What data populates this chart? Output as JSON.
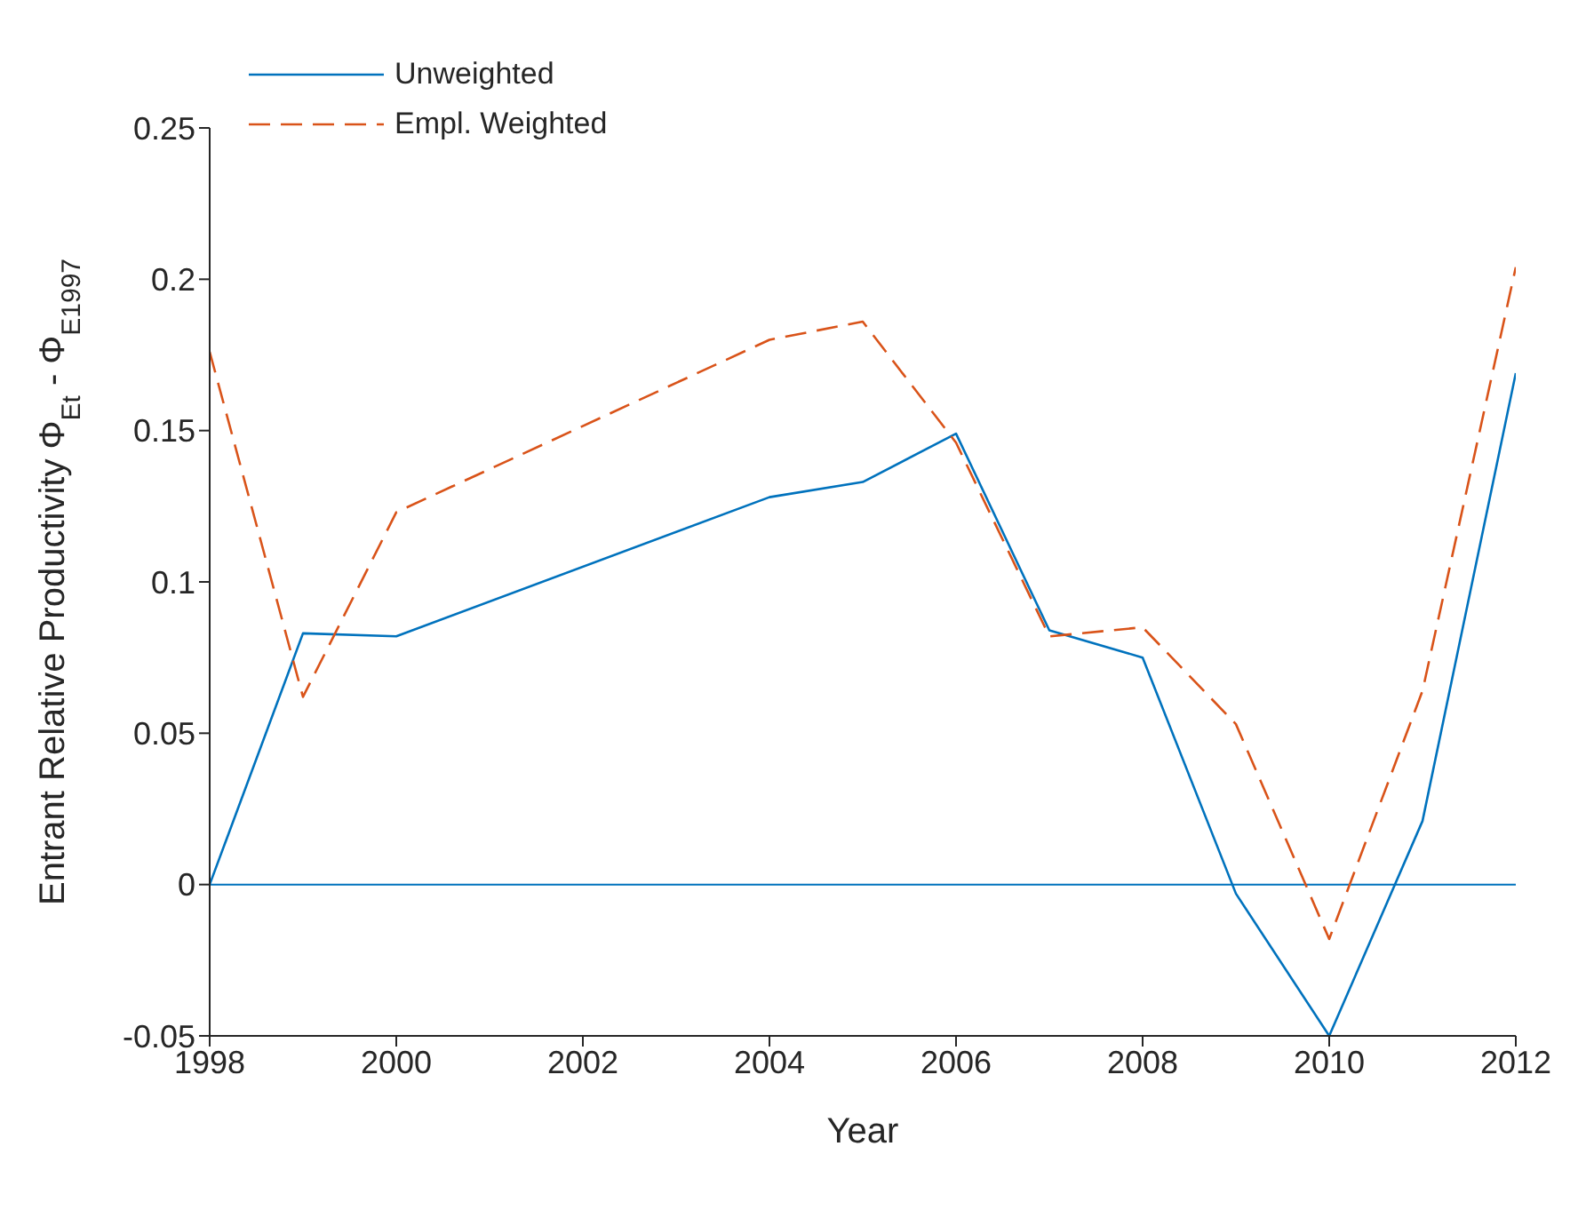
{
  "chart_data": {
    "type": "line",
    "xlabel": "Year",
    "ylabel": "Entrant Relative Productivity  Φ$_{Et}$ - Φ$_{E1997}$",
    "x": [
      1998,
      1999,
      2000,
      2004,
      2005,
      2006,
      2007,
      2008,
      2009,
      2010,
      2011,
      2012
    ],
    "series": [
      {
        "name": "Unweighted",
        "color": "#0072bd",
        "line_style": "solid",
        "values": [
          0,
          0.083,
          0.082,
          0.128,
          0.133,
          0.149,
          0.084,
          0.075,
          -0.003,
          -0.05,
          0.021,
          0.169
        ]
      },
      {
        "name": "Empl. Weighted",
        "color": "#d95319",
        "line_style": "dashed",
        "values": [
          0.176,
          0.062,
          0.123,
          0.18,
          0.186,
          0.146,
          0.082,
          0.085,
          0.053,
          -0.018,
          0.064,
          0.204
        ]
      }
    ],
    "ref_lines": [
      {
        "axis": "y",
        "value": 0,
        "color": "#0072bd",
        "line_style": "solid"
      }
    ],
    "xlim": [
      1998,
      2012
    ],
    "xticks": [
      1998,
      2000,
      2002,
      2004,
      2006,
      2008,
      2010,
      2012
    ],
    "ylim": [
      -0.05,
      0.25
    ],
    "yticks": [
      -0.05,
      0,
      0.05,
      0.1,
      0.15,
      0.2,
      0.25
    ],
    "legend": "top left",
    "marker": "none",
    "grid": false
  }
}
